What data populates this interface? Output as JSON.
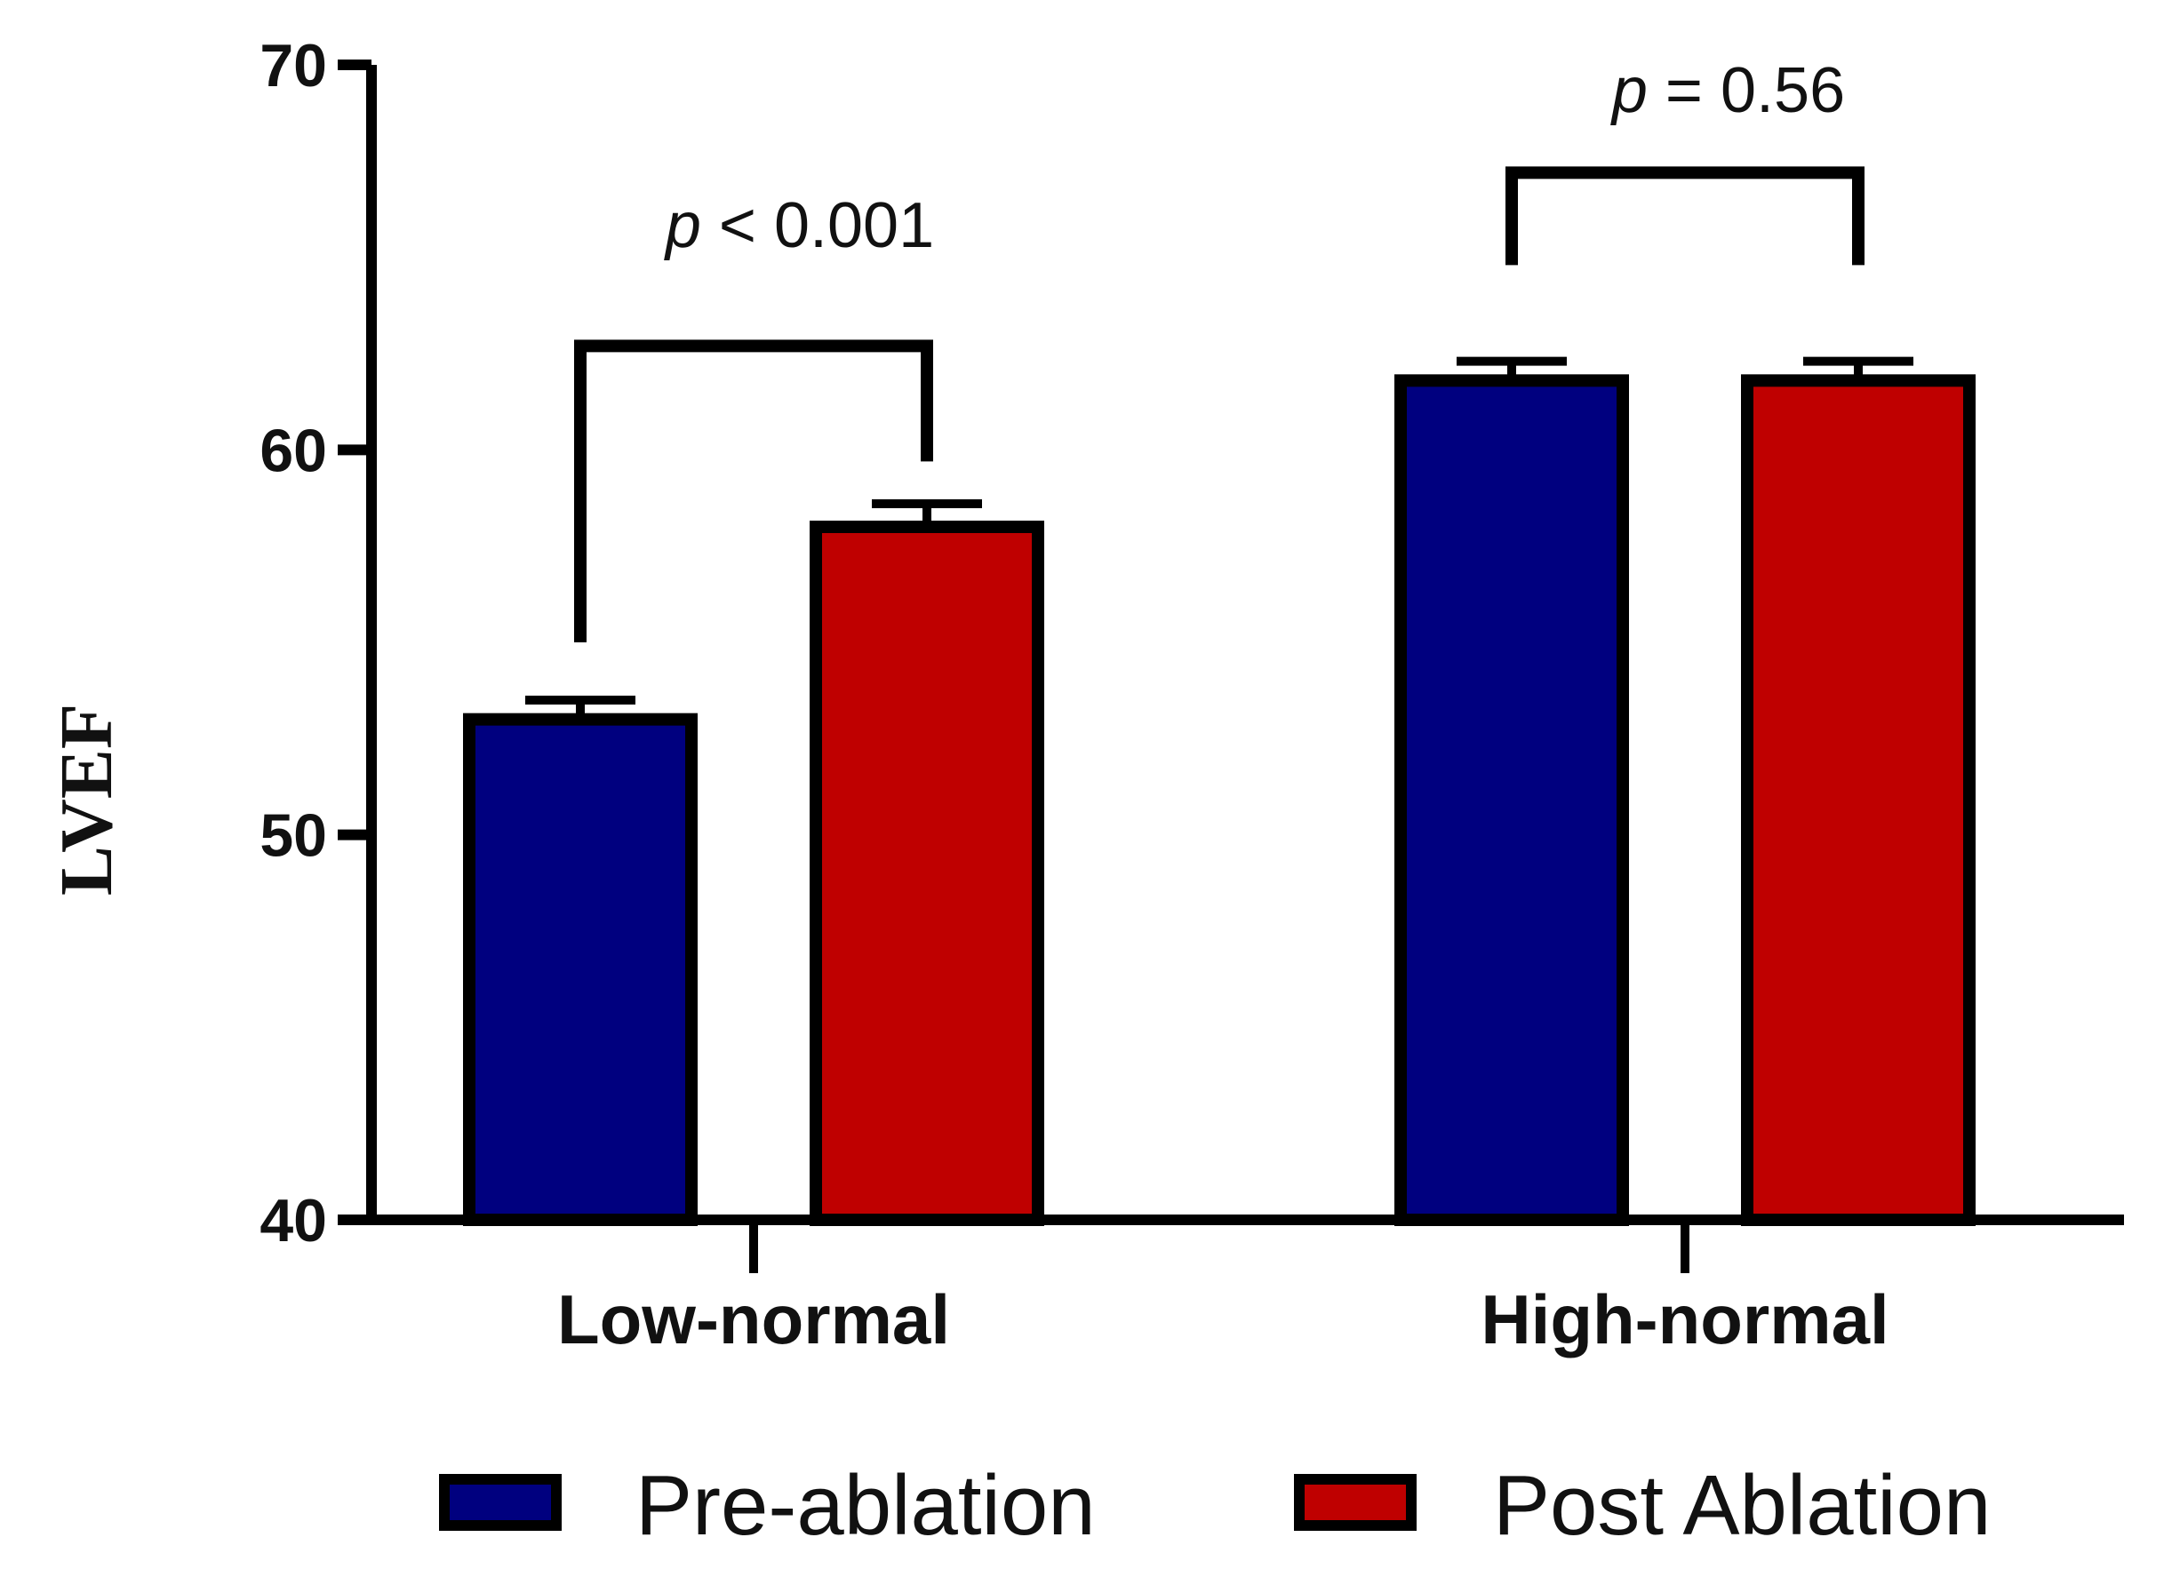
{
  "chart_data": {
    "type": "bar",
    "title": "",
    "xlabel": "",
    "ylabel": "LVEF",
    "ylim": [
      40,
      70
    ],
    "yticks": [
      40,
      50,
      60,
      70
    ],
    "categories": [
      "Low-normal",
      "High-normal"
    ],
    "series": [
      {
        "name": "Pre-ablation",
        "color": "#00007f",
        "values": [
          53.0,
          61.8
        ],
        "errors": [
          0.5,
          0.5
        ]
      },
      {
        "name": "Post Ablation",
        "color": "#bf0000",
        "values": [
          58.0,
          61.8
        ],
        "errors": [
          0.6,
          0.5
        ]
      }
    ],
    "annotations": [
      {
        "category": "Low-normal",
        "p_symbol": "p",
        "text": " < 0.001",
        "bracket_level": 62.7
      },
      {
        "category": "High-normal",
        "p_symbol": "p",
        "text": " = 0.56",
        "bracket_level": 67.2
      }
    ],
    "legend": {
      "position": "bottom"
    }
  }
}
